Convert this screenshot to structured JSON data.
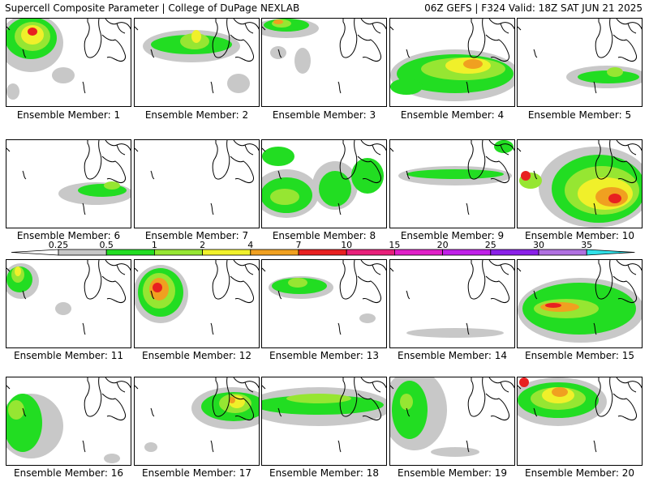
{
  "header": {
    "title_left": "Supercell Composite Parameter | College of DuPage NEXLAB",
    "title_right": "06Z GEFS | F324 Valid: 18Z SAT JUN 21 2025"
  },
  "member_prefix": "Ensemble Member: ",
  "members": [
    {
      "id": "1",
      "label": "Ensemble Member: 1"
    },
    {
      "id": "2",
      "label": "Ensemble Member: 2"
    },
    {
      "id": "3",
      "label": "Ensemble Member: 3"
    },
    {
      "id": "4",
      "label": "Ensemble Member: 4"
    },
    {
      "id": "5",
      "label": "Ensemble Member: 5"
    },
    {
      "id": "6",
      "label": "Ensemble Member: 6"
    },
    {
      "id": "7",
      "label": "Ensemble Member: 7"
    },
    {
      "id": "8",
      "label": "Ensemble Member: 8"
    },
    {
      "id": "9",
      "label": "Ensemble Member: 9"
    },
    {
      "id": "10",
      "label": "Ensemble Member: 10"
    },
    {
      "id": "11",
      "label": "Ensemble Member: 11"
    },
    {
      "id": "12",
      "label": "Ensemble Member: 12"
    },
    {
      "id": "13",
      "label": "Ensemble Member: 13"
    },
    {
      "id": "14",
      "label": "Ensemble Member: 14"
    },
    {
      "id": "15",
      "label": "Ensemble Member: 15"
    },
    {
      "id": "16",
      "label": "Ensemble Member: 16"
    },
    {
      "id": "17",
      "label": "Ensemble Member: 17"
    },
    {
      "id": "18",
      "label": "Ensemble Member: 18"
    },
    {
      "id": "19",
      "label": "Ensemble Member: 19"
    },
    {
      "id": "20",
      "label": "Ensemble Member: 20"
    }
  ],
  "colorbar": {
    "levels": [
      "0.25",
      "0.5",
      "1",
      "2",
      "4",
      "7",
      "10",
      "15",
      "20",
      "25",
      "30",
      "35"
    ],
    "colors": [
      "#c8c8c8",
      "#22dd22",
      "#96e632",
      "#f0f02a",
      "#f0a020",
      "#e82020",
      "#e8207a",
      "#e020c8",
      "#c020e8",
      "#8a20e8",
      "#b070e0",
      "#30e0e8"
    ]
  },
  "colors": {
    "land_outline": "#000000",
    "background": "#ffffff"
  }
}
